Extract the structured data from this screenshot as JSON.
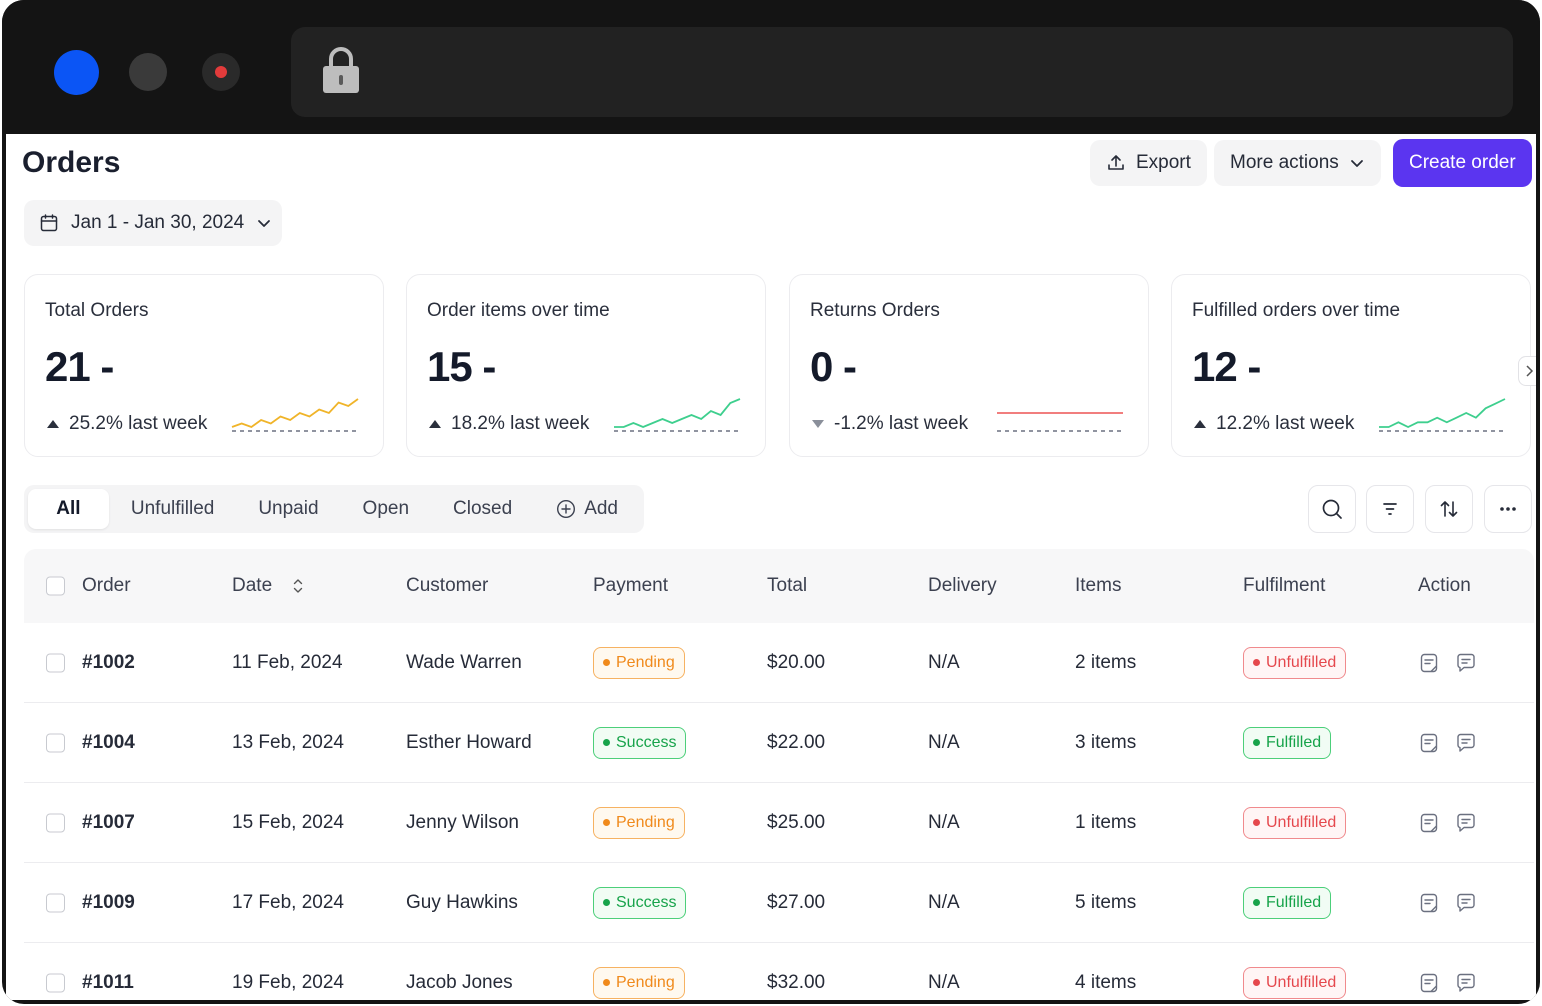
{
  "page": {
    "title": "Orders",
    "export_label": "Export",
    "more_actions_label": "More actions",
    "create_order_label": "Create order",
    "date_range": "Jan 1 - Jan 30, 2024"
  },
  "colors": {
    "accent": "#5b35f0",
    "pending": "#f08a1c",
    "success": "#16a34a",
    "unfulfilled": "#e5484d"
  },
  "stats": [
    {
      "label": "Total Orders",
      "value": "21 -",
      "trend": "25.2% last week",
      "direction": "up",
      "spark_color": "#f0b429",
      "spark": [
        2,
        3,
        2,
        4,
        3,
        5,
        4,
        6,
        5,
        7,
        6,
        9,
        8,
        10
      ]
    },
    {
      "label": "Order items over time",
      "value": "15 -",
      "trend": "18.2% last week",
      "direction": "up",
      "spark_color": "#3ecf8e",
      "spark": [
        2,
        2,
        3,
        2,
        3,
        4,
        3,
        4,
        5,
        4,
        6,
        5,
        8,
        9
      ]
    },
    {
      "label": "Returns Orders",
      "value": "0 -",
      "trend": "-1.2% last week",
      "direction": "down",
      "spark_color": "#ef6b6b",
      "spark": [
        5,
        5,
        5,
        5,
        5,
        5,
        5,
        5,
        5,
        5,
        5,
        5,
        5,
        5
      ]
    },
    {
      "label": "Fulfilled orders over time",
      "value": "12 -",
      "trend": "12.2% last week",
      "direction": "up",
      "spark_color": "#3ecf8e",
      "spark": [
        2,
        2,
        3,
        2,
        3,
        3,
        4,
        3,
        4,
        5,
        4,
        6,
        7,
        8
      ]
    }
  ],
  "tabs": [
    "All",
    "Unfulfilled",
    "Unpaid",
    "Open",
    "Closed"
  ],
  "add_tab_label": "Add",
  "table": {
    "headers": {
      "order": "Order",
      "date": "Date",
      "customer": "Customer",
      "payment": "Payment",
      "total": "Total",
      "delivery": "Delivery",
      "items": "Items",
      "fulfilment": "Fulfilment",
      "action": "Action"
    },
    "rows": [
      {
        "order": "#1002",
        "date": "11 Feb, 2024",
        "customer": "Wade Warren",
        "payment": "Pending",
        "total": "$20.00",
        "delivery": "N/A",
        "items": "2 items",
        "fulfilment": "Unfulfilled"
      },
      {
        "order": "#1004",
        "date": "13 Feb, 2024",
        "customer": "Esther Howard",
        "payment": "Success",
        "total": "$22.00",
        "delivery": "N/A",
        "items": "3 items",
        "fulfilment": "Fulfilled"
      },
      {
        "order": "#1007",
        "date": "15 Feb, 2024",
        "customer": "Jenny Wilson",
        "payment": "Pending",
        "total": "$25.00",
        "delivery": "N/A",
        "items": "1 items",
        "fulfilment": "Unfulfilled"
      },
      {
        "order": "#1009",
        "date": "17 Feb, 2024",
        "customer": "Guy Hawkins",
        "payment": "Success",
        "total": "$27.00",
        "delivery": "N/A",
        "items": "5 items",
        "fulfilment": "Fulfilled"
      },
      {
        "order": "#1011",
        "date": "19 Feb, 2024",
        "customer": "Jacob Jones",
        "payment": "Pending",
        "total": "$32.00",
        "delivery": "N/A",
        "items": "4 items",
        "fulfilment": "Unfulfilled"
      }
    ]
  }
}
